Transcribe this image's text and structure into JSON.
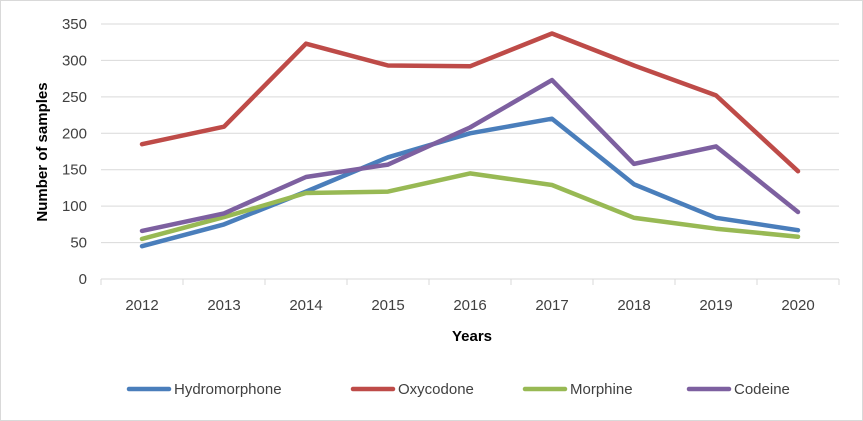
{
  "chart_data": {
    "type": "line",
    "categories": [
      "2012",
      "2013",
      "2014",
      "2015",
      "2016",
      "2017",
      "2018",
      "2019",
      "2020"
    ],
    "series": [
      {
        "name": "Hydromorphone",
        "color": "#4a7ebb",
        "values": [
          45,
          75,
          120,
          167,
          200,
          220,
          130,
          84,
          67
        ]
      },
      {
        "name": "Oxycodone",
        "color": "#be4b48",
        "values": [
          185,
          209,
          323,
          293,
          292,
          337,
          293,
          252,
          148
        ]
      },
      {
        "name": "Morphine",
        "color": "#98b954",
        "values": [
          55,
          85,
          118,
          120,
          145,
          129,
          84,
          69,
          58
        ]
      },
      {
        "name": "Codeine",
        "color": "#7d60a0",
        "values": [
          66,
          90,
          140,
          157,
          208,
          273,
          158,
          182,
          92
        ]
      }
    ],
    "xlabel": "Years",
    "ylabel": "Number of samples",
    "ylim": [
      0,
      350
    ],
    "yticks": [
      0,
      50,
      100,
      150,
      200,
      250,
      300,
      350
    ],
    "grid": true,
    "legend_position": "bottom"
  }
}
